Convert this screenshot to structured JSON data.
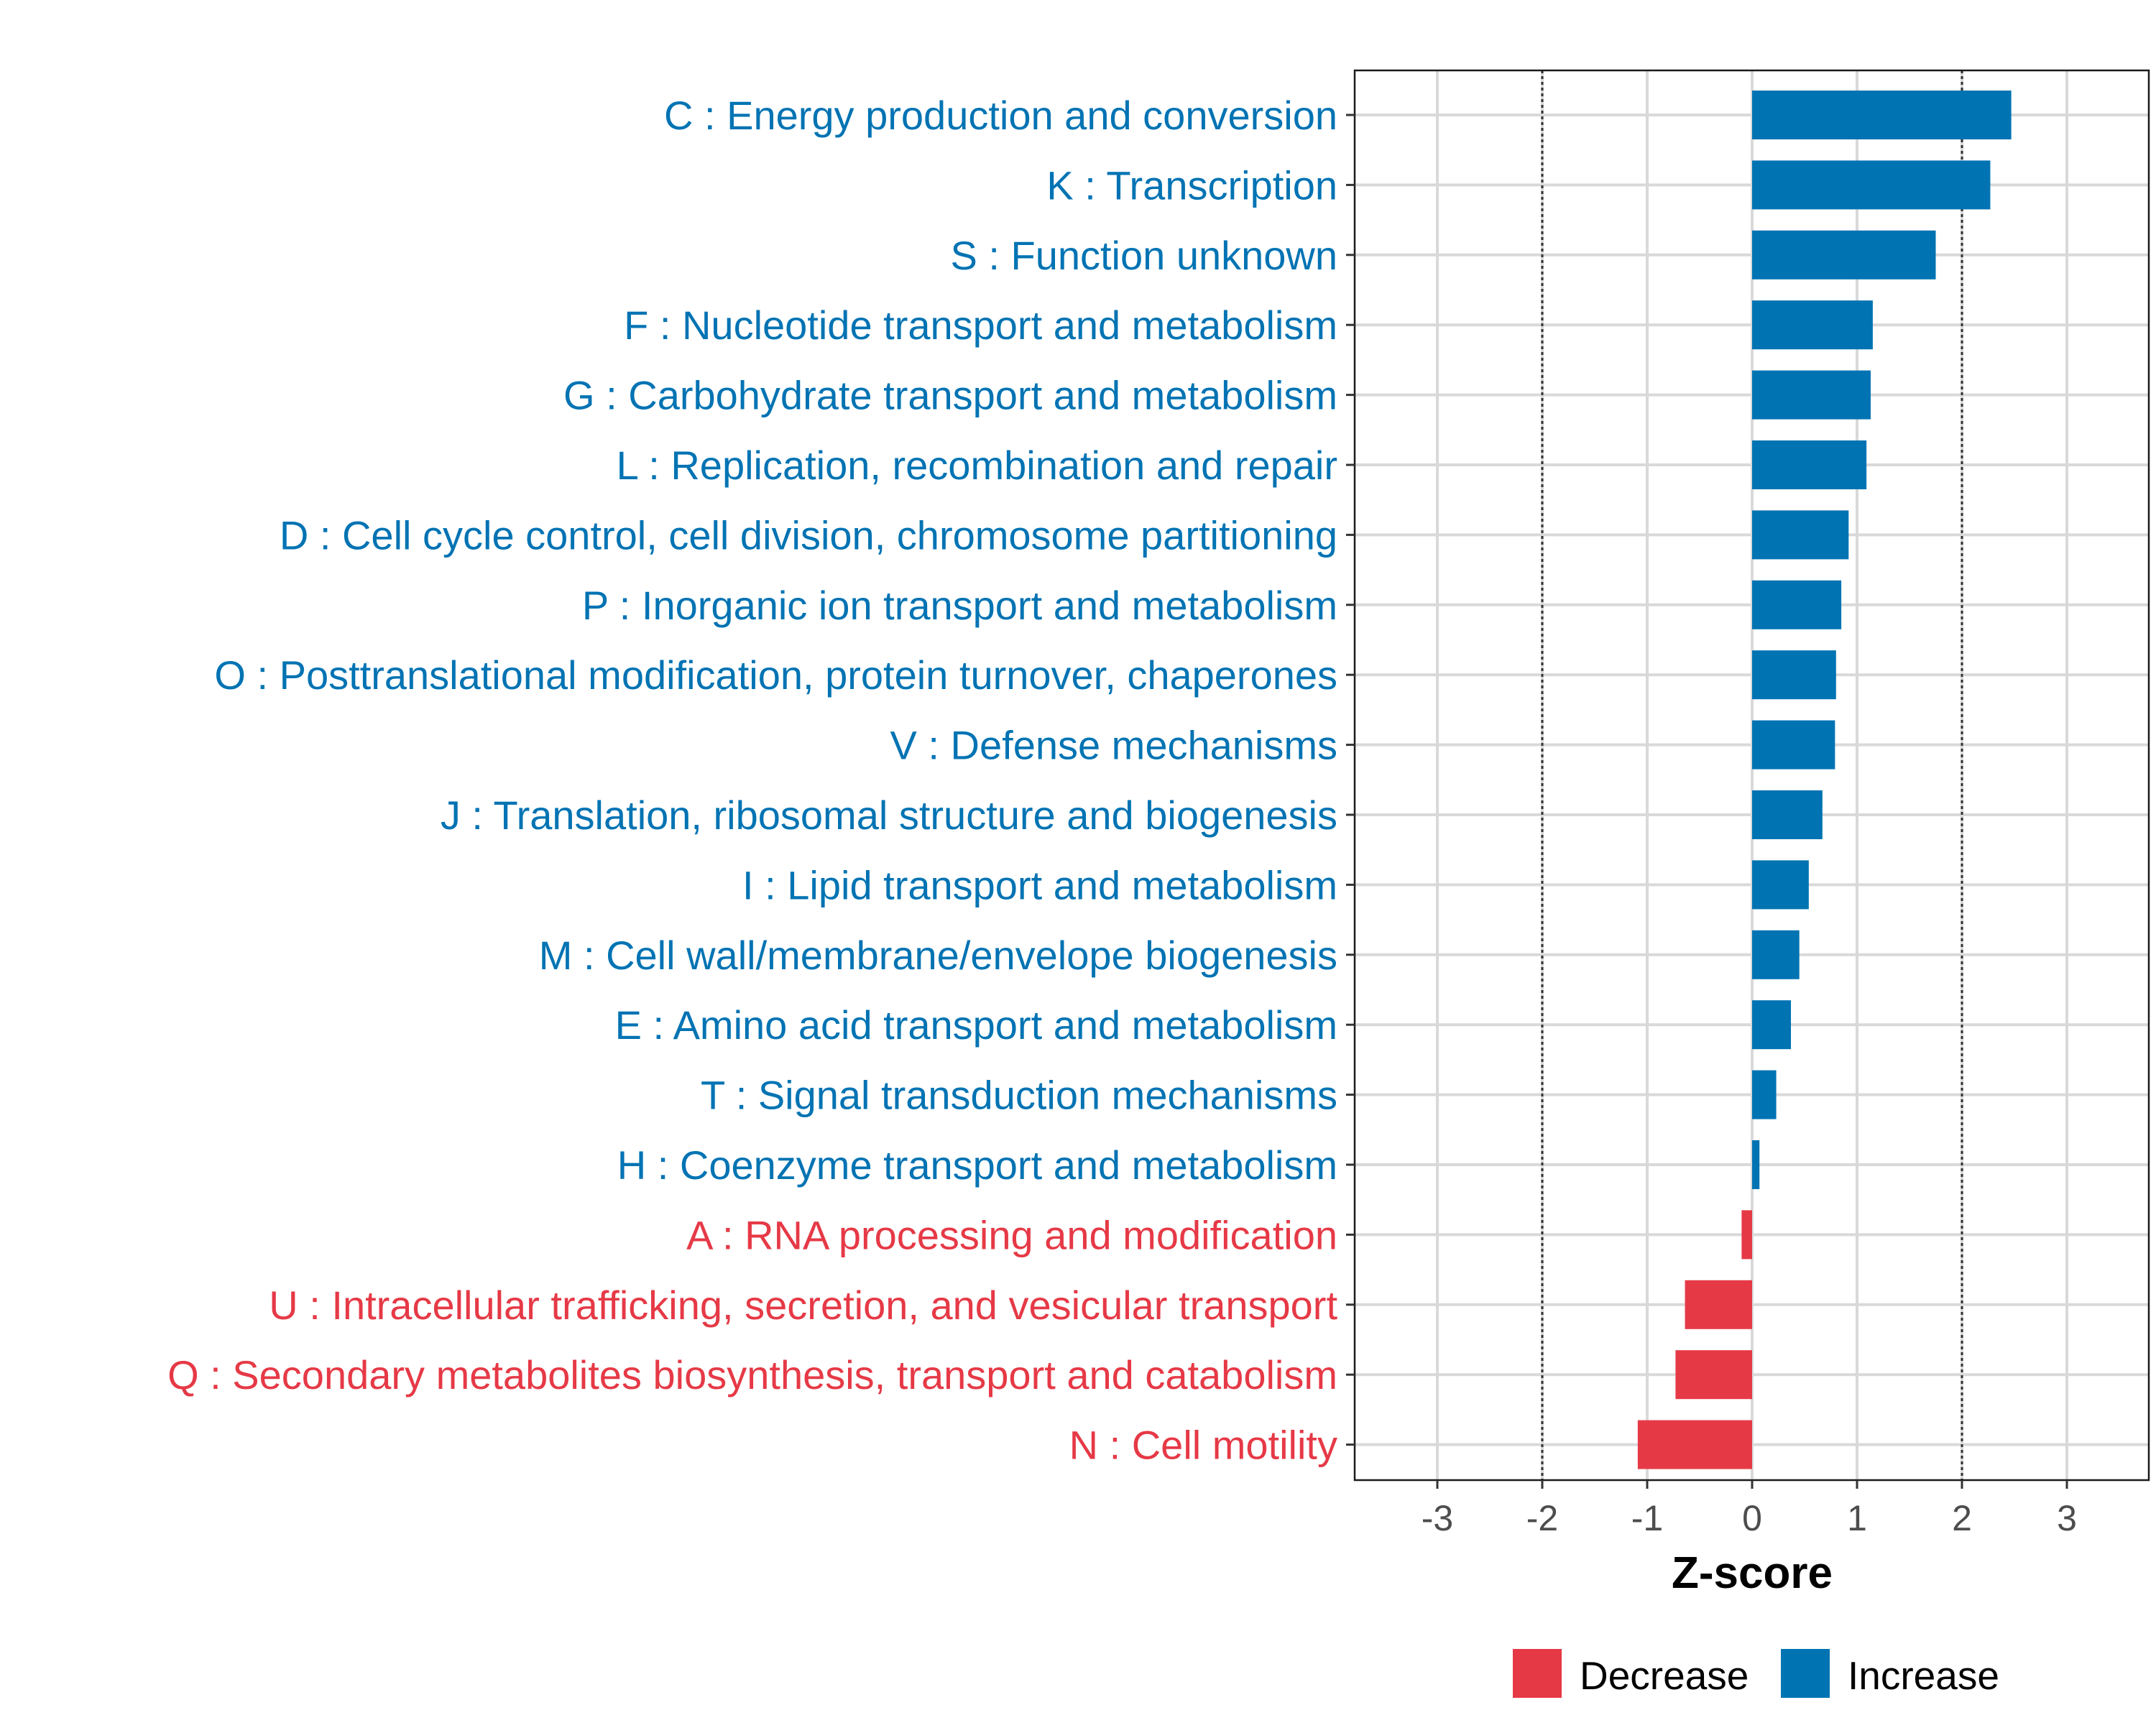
{
  "chart_data": {
    "type": "bar",
    "orientation": "horizontal",
    "title": "",
    "xlabel": "Z-score",
    "ylabel": "",
    "xlim": [
      -3.8,
      3.8
    ],
    "x_ticks": [
      -3,
      -2,
      -1,
      0,
      1,
      2,
      3
    ],
    "x_tick_labels": [
      "-3",
      "-2",
      "-1",
      "0",
      "1",
      "2",
      "3"
    ],
    "reference_lines": [
      -2,
      2
    ],
    "grid": true,
    "categories": [
      "C : Energy production and conversion",
      "K : Transcription",
      "S : Function unknown",
      "F : Nucleotide transport and metabolism",
      "G : Carbohydrate transport and metabolism",
      "L : Replication, recombination and repair",
      "D : Cell cycle control, cell division, chromosome partitioning",
      "P : Inorganic ion transport and metabolism",
      "O : Posttranslational modification, protein turnover, chaperones",
      "V : Defense mechanisms",
      "J : Translation, ribosomal structure and biogenesis",
      "I : Lipid transport and metabolism",
      "M : Cell wall/membrane/envelope biogenesis",
      "E : Amino acid transport and metabolism",
      "T : Signal transduction mechanisms",
      "H : Coenzyme transport and metabolism",
      "A : RNA processing and modification",
      "U : Intracellular trafficking, secretion, and vesicular transport",
      "Q : Secondary metabolites biosynthesis, transport and catabolism",
      "N : Cell motility"
    ],
    "values": [
      2.47,
      2.27,
      1.75,
      1.15,
      1.13,
      1.09,
      0.92,
      0.85,
      0.8,
      0.79,
      0.67,
      0.54,
      0.45,
      0.37,
      0.23,
      0.07,
      -0.1,
      -0.64,
      -0.73,
      -1.09
    ],
    "groups": [
      "Increase",
      "Increase",
      "Increase",
      "Increase",
      "Increase",
      "Increase",
      "Increase",
      "Increase",
      "Increase",
      "Increase",
      "Increase",
      "Increase",
      "Increase",
      "Increase",
      "Increase",
      "Increase",
      "Decrease",
      "Decrease",
      "Decrease",
      "Decrease"
    ],
    "legend": {
      "placement": "bottom",
      "entries": [
        {
          "label": "Decrease",
          "color": "#E63946"
        },
        {
          "label": "Increase",
          "color": "#0073B3"
        }
      ]
    },
    "colors": {
      "Decrease": "#E63946",
      "Increase": "#0073B3"
    }
  }
}
